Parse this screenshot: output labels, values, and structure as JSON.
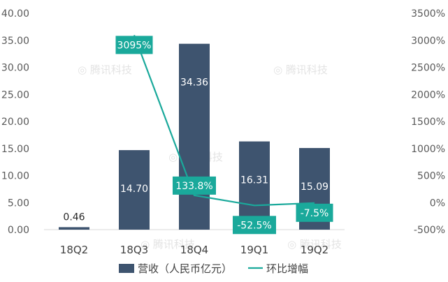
{
  "colors": {
    "bar": "#3e546f",
    "line": "#1aa99b",
    "label_box": "#1aa99b",
    "axis_text": "#595959",
    "grid": "#d9d9d9",
    "watermark": "#e3e3e3"
  },
  "watermark_text": "腾讯科技",
  "chart_data": {
    "type": "bar",
    "categories": [
      "18Q2",
      "18Q3",
      "18Q4",
      "19Q1",
      "19Q2"
    ],
    "series": [
      {
        "name": "营收（人民币亿元）",
        "type": "bar",
        "axis": "left",
        "values": [
          0.46,
          14.7,
          34.36,
          16.31,
          15.09
        ],
        "labels": [
          "0.46",
          "14.70",
          "34.36",
          "16.31",
          "15.09"
        ]
      },
      {
        "name": "环比增幅",
        "type": "line",
        "axis": "right",
        "values": [
          null,
          3095,
          133.8,
          -52.5,
          -7.5
        ],
        "labels": [
          "",
          "3095%",
          "133.8%",
          "-52.5%",
          "-7.5%"
        ]
      }
    ],
    "y_left": {
      "ylim": [
        0,
        40
      ],
      "ticks": [
        0,
        5,
        10,
        15,
        20,
        25,
        30,
        35,
        40
      ],
      "tick_labels": [
        "0.00",
        "5.00",
        "10.00",
        "15.00",
        "20.00",
        "25.00",
        "30.00",
        "35.00",
        "40.00"
      ]
    },
    "y_right": {
      "ylim": [
        -500,
        3500
      ],
      "ticks": [
        -500,
        0,
        500,
        1000,
        1500,
        2000,
        2500,
        3000,
        3500
      ],
      "tick_labels": [
        "-500%",
        "0%",
        "500%",
        "1000%",
        "1500%",
        "2000%",
        "2500%",
        "3000%",
        "3500%"
      ]
    },
    "grid": false,
    "legend": {
      "position": "bottom",
      "entries": [
        "营收（人民币亿元）",
        "环比增幅"
      ]
    }
  }
}
